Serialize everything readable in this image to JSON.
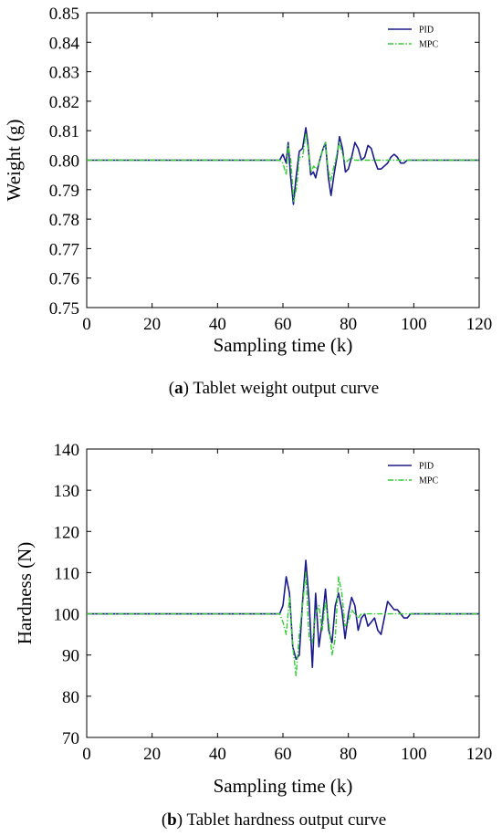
{
  "chart_data": [
    {
      "type": "line",
      "caption_letter": "a",
      "caption_open": "(",
      "caption_close": ")",
      "caption_text": " Tablet weight output curve",
      "xlabel": "Sampling time (k)",
      "ylabel": "Weight (g)",
      "xlim": [
        0,
        120
      ],
      "ylim": [
        0.75,
        0.85
      ],
      "xticks": [
        0,
        20,
        40,
        60,
        80,
        100,
        120
      ],
      "xtick_labels": [
        "0",
        "20",
        "40",
        "60",
        "80",
        "100",
        "120"
      ],
      "yticks": [
        0.75,
        0.76,
        0.77,
        0.78,
        0.79,
        0.8,
        0.81,
        0.82,
        0.83,
        0.84,
        0.85
      ],
      "ytick_labels": [
        "0.75",
        "0.76",
        "0.77",
        "0.78",
        "0.79",
        "0.80",
        "0.81",
        "0.82",
        "0.83",
        "0.84",
        "0.85"
      ],
      "grid": false,
      "legend_position": "top-right",
      "series": [
        {
          "name": "PID",
          "color": "#1a1a8c",
          "style": "solid",
          "x": [
            0,
            59,
            60,
            61,
            61.6,
            62.3,
            63.2,
            64,
            65,
            66,
            67,
            67.6,
            68.5,
            69.3,
            70,
            71,
            72,
            73,
            73.9,
            74.7,
            75.6,
            76.5,
            77.3,
            78.2,
            79.1,
            80,
            81,
            82,
            83,
            84,
            85,
            86,
            87,
            88,
            89,
            90,
            91,
            92,
            93,
            94,
            95,
            96,
            97,
            98,
            99,
            100,
            120
          ],
          "y": [
            0.8,
            0.8,
            0.802,
            0.799,
            0.806,
            0.795,
            0.785,
            0.794,
            0.803,
            0.804,
            0.811,
            0.806,
            0.795,
            0.796,
            0.794,
            0.799,
            0.803,
            0.806,
            0.794,
            0.788,
            0.795,
            0.801,
            0.808,
            0.804,
            0.796,
            0.797,
            0.801,
            0.806,
            0.804,
            0.8,
            0.801,
            0.805,
            0.804,
            0.8,
            0.797,
            0.797,
            0.798,
            0.799,
            0.801,
            0.802,
            0.801,
            0.799,
            0.799,
            0.8,
            0.8,
            0.8,
            0.8
          ]
        },
        {
          "name": "MPC",
          "color": "#33cc33",
          "style": "dashdot",
          "x": [
            0,
            59,
            60,
            61,
            61.6,
            62.4,
            63.3,
            64.2,
            65,
            66,
            67,
            67.8,
            68.6,
            69.4,
            70.2,
            71,
            72,
            73,
            73.8,
            74.6,
            75.4,
            76.3,
            77.2,
            78,
            79,
            80,
            81,
            82,
            83,
            84,
            86,
            88,
            90,
            92,
            94,
            96,
            98,
            100,
            120
          ],
          "y": [
            0.8,
            0.8,
            0.799,
            0.795,
            0.805,
            0.8,
            0.786,
            0.791,
            0.801,
            0.801,
            0.809,
            0.803,
            0.796,
            0.798,
            0.797,
            0.799,
            0.803,
            0.806,
            0.797,
            0.793,
            0.797,
            0.801,
            0.806,
            0.803,
            0.799,
            0.8,
            0.801,
            0.8,
            0.8,
            0.8,
            0.8,
            0.8,
            0.8,
            0.8,
            0.8,
            0.8,
            0.8,
            0.8,
            0.8
          ]
        }
      ]
    },
    {
      "type": "line",
      "caption_letter": "b",
      "caption_open": "(",
      "caption_close": ")",
      "caption_text": " Tablet hardness output curve",
      "xlabel": "Sampling time (k)",
      "ylabel": "Hardness (N)",
      "xlim": [
        0,
        120
      ],
      "ylim": [
        70,
        140
      ],
      "xticks": [
        0,
        20,
        40,
        60,
        80,
        100,
        120
      ],
      "xtick_labels": [
        "0",
        "20",
        "40",
        "60",
        "80",
        "100",
        "120"
      ],
      "yticks": [
        70,
        80,
        90,
        100,
        110,
        120,
        130,
        140
      ],
      "ytick_labels": [
        "70",
        "80",
        "90",
        "100",
        "110",
        "120",
        "130",
        "140"
      ],
      "grid": false,
      "legend_position": "top-right",
      "series": [
        {
          "name": "PID",
          "color": "#1a1a8c",
          "style": "solid",
          "x": [
            0,
            59,
            60,
            61,
            62,
            63,
            64,
            65,
            66,
            67,
            68,
            69,
            70,
            71,
            72,
            73,
            74,
            75,
            76,
            77,
            78,
            79,
            80,
            81,
            82,
            83,
            84,
            85,
            86,
            87,
            88,
            89,
            90,
            91,
            92,
            93,
            94,
            95,
            96,
            97,
            98,
            99,
            100,
            120
          ],
          "y": [
            100,
            100,
            102,
            109,
            105,
            92,
            89,
            90,
            103,
            113,
            103,
            87,
            105,
            92,
            98,
            106,
            96,
            93,
            102,
            105,
            101,
            94,
            100,
            104,
            102,
            96,
            99,
            100,
            97,
            98,
            99,
            96,
            95,
            99,
            103,
            102,
            101,
            101,
            100,
            99,
            99,
            100,
            100,
            100
          ]
        },
        {
          "name": "MPC",
          "color": "#33cc33",
          "style": "dashdot",
          "x": [
            0,
            59,
            60,
            61,
            62,
            63,
            64,
            65,
            66,
            67,
            68,
            69,
            70,
            71,
            72,
            73,
            74,
            75,
            76,
            77,
            78,
            79,
            80,
            81,
            82,
            83,
            84,
            86,
            88,
            90,
            100,
            120
          ],
          "y": [
            100,
            100,
            98,
            95,
            104,
            92,
            85,
            95,
            102,
            110,
            94,
            93,
            100,
            102,
            96,
            103,
            98,
            90,
            94,
            109,
            105,
            97,
            98,
            101,
            100,
            99,
            100,
            100,
            100,
            100,
            100,
            100
          ]
        }
      ]
    }
  ]
}
